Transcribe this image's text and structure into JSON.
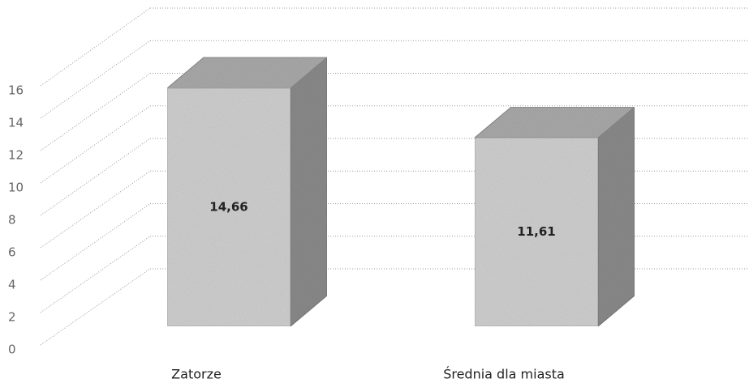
{
  "chart_data": {
    "type": "bar3d",
    "categories": [
      "Zatorze",
      "Średnia dla miasta"
    ],
    "values": [
      14.66,
      11.61
    ],
    "value_labels": [
      "14,66",
      "11,61"
    ],
    "color": "#cfcfcf",
    "ylim": [
      0,
      16
    ],
    "yticks": [
      0,
      2,
      4,
      6,
      8,
      10,
      12,
      14,
      16
    ],
    "grid": true
  }
}
